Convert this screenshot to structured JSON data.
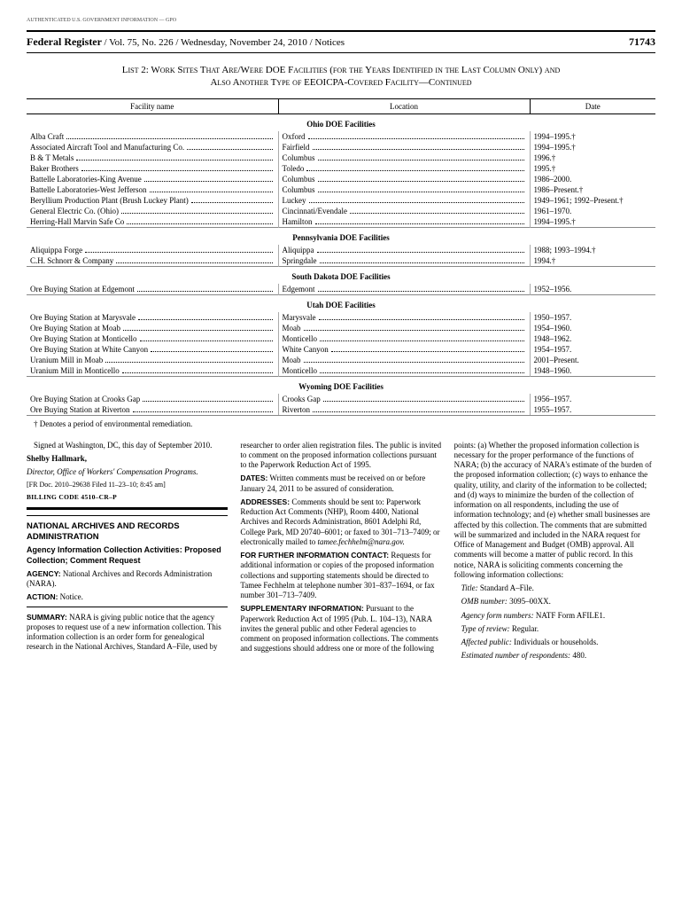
{
  "auth_mark": "AUTHENTICATED U.S. GOVERNMENT INFORMATION — GPO",
  "header": {
    "title": "Federal Register",
    "meta": "/ Vol. 75, No. 226 / Wednesday, November 24, 2010 / Notices",
    "page": "71743"
  },
  "list_title_l1": "List 2: Work Sites That Are/Were DOE Facilities (for the Years Identified in the Last Column Only) and",
  "list_title_l2": "Also Another Type of EEOICPA-Covered Facility—Continued",
  "columns": [
    "Facility name",
    "Location",
    "Date"
  ],
  "sections": [
    {
      "title": "Ohio DOE Facilities",
      "rows": [
        [
          "Alba Craft",
          "Oxford",
          "1994–1995.†"
        ],
        [
          "Associated Aircraft Tool and Manufacturing Co.",
          "Fairfield",
          "1994–1995.†"
        ],
        [
          "B & T Metals",
          "Columbus",
          "1996.†"
        ],
        [
          "Baker Brothers",
          "Toledo",
          "1995.†"
        ],
        [
          "Battelle Laboratories-King Avenue",
          "Columbus",
          "1986–2000."
        ],
        [
          "Battelle Laboratories-West Jefferson",
          "Columbus",
          "1986–Present.†"
        ],
        [
          "Beryllium Production Plant (Brush Luckey Plant)",
          "Luckey",
          "1949–1961; 1992–Present.†"
        ],
        [
          "General Electric Co. (Ohio)",
          "Cincinnati/Evendale",
          "1961–1970."
        ],
        [
          "Herring-Hall Marvin Safe Co",
          "Hamilton",
          "1994–1995.†"
        ]
      ]
    },
    {
      "title": "Pennsylvania DOE Facilities",
      "rows": [
        [
          "Aliquippa Forge",
          "Aliquippa",
          "1988; 1993–1994.†"
        ],
        [
          "C.H. Schnorr & Company",
          "Springdale",
          "1994.†"
        ]
      ]
    },
    {
      "title": "South Dakota DOE Facilities",
      "rows": [
        [
          "Ore Buying Station at Edgemont",
          "Edgemont",
          "1952–1956."
        ]
      ]
    },
    {
      "title": "Utah DOE Facilities",
      "rows": [
        [
          "Ore Buying Station at Marysvale",
          "Marysvale",
          "1950–1957."
        ],
        [
          "Ore Buying Station at Moab",
          "Moab",
          "1954–1960."
        ],
        [
          "Ore Buying Station at Monticello",
          "Monticello",
          "1948–1962."
        ],
        [
          "Ore Buying Station at White Canyon",
          "White Canyon",
          "1954–1957."
        ],
        [
          "Uranium Mill in Moab",
          "Moab",
          "2001–Present."
        ],
        [
          "Uranium Mill in Monticello",
          "Monticello",
          "1948–1960."
        ]
      ]
    },
    {
      "title": "Wyoming DOE Facilities",
      "rows": [
        [
          "Ore Buying Station at Crooks Gap",
          "Crooks Gap",
          "1956–1957."
        ],
        [
          "Ore Buying Station at Riverton",
          "Riverton",
          "1955–1957."
        ]
      ]
    }
  ],
  "footnote": "† Denotes a period of environmental remediation.",
  "body": {
    "sig_intro": "Signed at Washington, DC, this day of September 2010.",
    "sig_name": "Shelby Hallmark,",
    "sig_title": "Director, Office of Workers' Compensation Programs.",
    "fr_doc": "[FR Doc. 2010–29638 Filed 11–23–10; 8:45 am]",
    "billing": "BILLING CODE 4510–CR–P",
    "agency": "NATIONAL ARCHIVES AND RECORDS ADMINISTRATION",
    "notice_sub": "Agency Information Collection Activities: Proposed Collection; Comment Request",
    "agency_label": "AGENCY:",
    "agency_text": " National Archives and Records Administration (NARA).",
    "action_label": "ACTION:",
    "action_text": " Notice.",
    "summary_label": "SUMMARY:",
    "summary_text": " NARA is giving public notice that the agency proposes to request use of a new information collection. This information collection is an order form for genealogical research in the National Archives, Standard A–File, used by researcher to order alien registration files. The public is invited to comment on the proposed information collections pursuant to the Paperwork Reduction Act of 1995.",
    "dates_label": "DATES:",
    "dates_text": " Written comments must be received on or before January 24, 2011 to be assured of consideration.",
    "addresses_label": "ADDRESSES:",
    "addresses_text": " Comments should be sent to: Paperwork Reduction Act Comments (NHP), Room 4400, National Archives and Records Administration, 8601 Adelphi Rd, College Park, MD 20740–6001; or faxed to 301–713–7409; or electronically mailed to ",
    "addresses_email": "tamee.fechhelm@nara.gov.",
    "contact_label": "FOR FURTHER INFORMATION CONTACT:",
    "contact_text": " Requests for additional information or copies of the proposed information collections and supporting statements should be directed to Tamee Fechhelm at telephone number 301–837–1694, or fax number 301–713–7409.",
    "supp_label": "SUPPLEMENTARY INFORMATION:",
    "supp_text": " Pursuant to the Paperwork Reduction Act of 1995 (Pub. L. 104–13), NARA invites the general public and other Federal agencies to comment on proposed information collections. The comments and suggestions should address one or more of the following points: (a) Whether the proposed information collection is necessary for the proper performance of the functions of NARA; (b) the accuracy of NARA's estimate of the burden of the proposed information collection; (c) ways to enhance the quality, utility, and clarity of the information to be collected; and (d) ways to minimize the burden of the collection of information on all respondents, including the use of information technology; and (e) whether small businesses are affected by this collection. The comments that are submitted will be summarized and included in the NARA request for Office of Management and Budget (OMB) approval. All comments will become a matter of public record. In this notice, NARA is soliciting comments concerning the following information collections:",
    "title_label": "Title:",
    "title_text": " Standard A–File.",
    "omb_label": "OMB number:",
    "omb_text": " 3095–00XX.",
    "form_label": "Agency form numbers:",
    "form_text": " NATF Form AFILE1.",
    "review_label": "Type of review:",
    "review_text": " Regular.",
    "public_label": "Affected public:",
    "public_text": " Individuals or households.",
    "resp_label": "Estimated number of respondents:",
    "resp_text": " 480."
  }
}
